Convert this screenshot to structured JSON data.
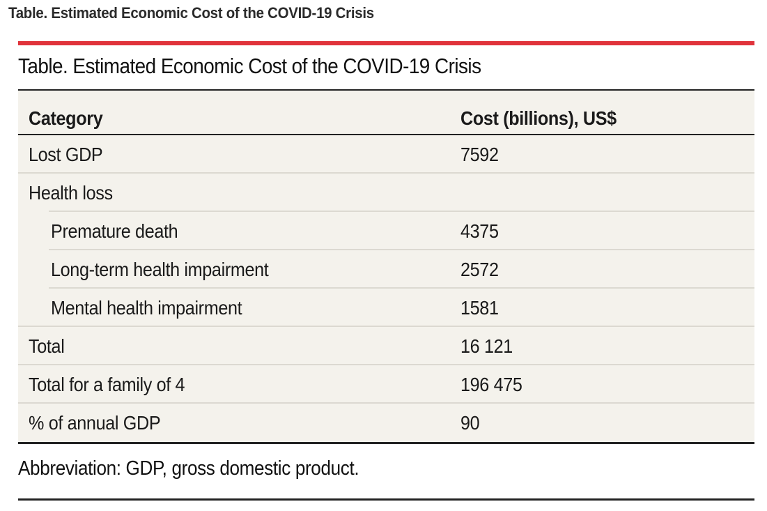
{
  "page_caption": "Table.  Estimated Economic Cost of the COVID-19 Crisis",
  "table": {
    "title": "Table. Estimated Economic Cost of the COVID-19 Crisis",
    "columns": [
      "Category",
      "Cost (billions), US$"
    ],
    "rows": [
      {
        "category": "Lost GDP",
        "cost": "7592",
        "level": 0
      },
      {
        "category": "Health loss",
        "cost": "",
        "level": 0
      },
      {
        "category": "Premature death",
        "cost": "4375",
        "level": 1
      },
      {
        "category": "Long-term health impairment",
        "cost": "2572",
        "level": 1
      },
      {
        "category": "Mental health impairment",
        "cost": "1581",
        "level": 1
      },
      {
        "category": "Total",
        "cost": "16 121",
        "level": 0
      },
      {
        "category": "Total for a family of 4",
        "cost": "196 475",
        "level": 0
      },
      {
        "category": "% of annual GDP",
        "cost": "90",
        "level": 0
      }
    ],
    "footnote": "Abbreviation: GDP, gross domestic product."
  },
  "colors": {
    "accent_bar": "#e0333b",
    "table_background": "#f4f2ec"
  }
}
